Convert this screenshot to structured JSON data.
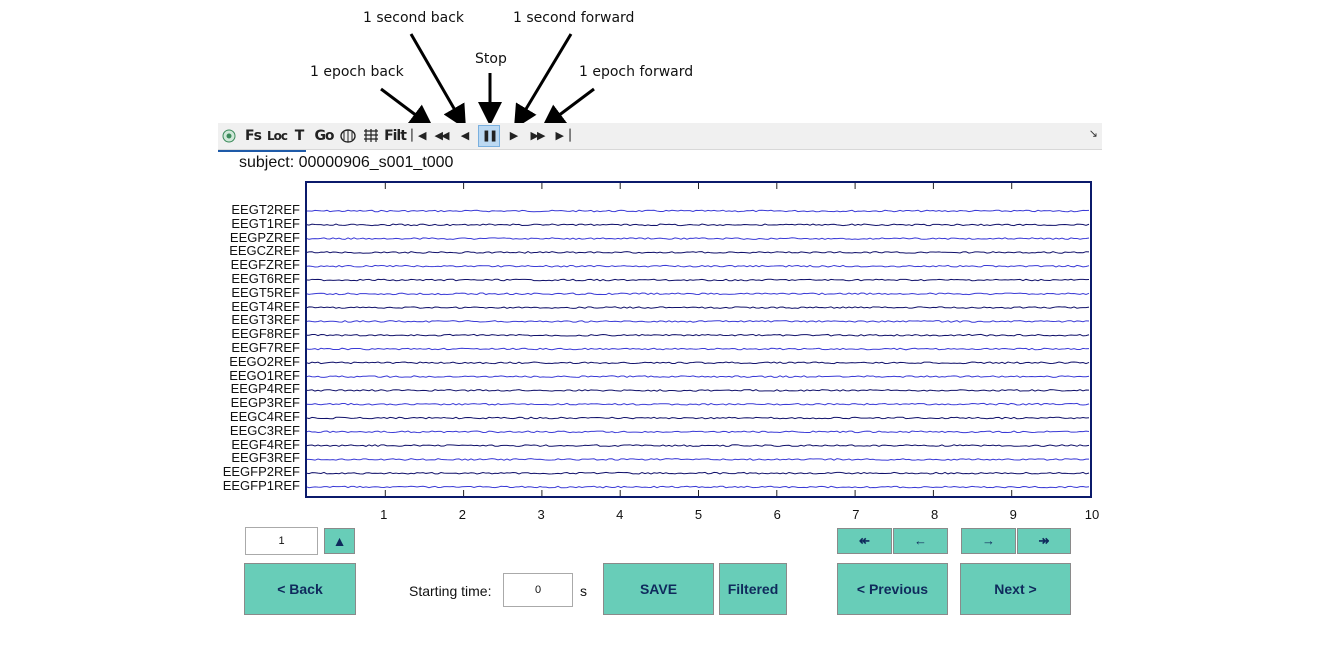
{
  "annotations": {
    "one_second_back": "1 second back",
    "one_second_forward": "1 second forward",
    "stop": "Stop",
    "one_epoch_back": "1 epoch back",
    "one_epoch_forward": "1 epoch forward"
  },
  "toolbar": {
    "items": [
      "Fs",
      "Loc",
      "T",
      "Go",
      "Filt"
    ],
    "icons": [
      "eeg-logo-icon",
      "brain-icon",
      "montage-icon",
      "skip-to-start-icon",
      "fast-back-icon",
      "step-back-icon",
      "pause-icon",
      "play-icon",
      "fast-forward-icon",
      "skip-to-end-icon",
      "undock-icon"
    ]
  },
  "subject": "subject: 00000906_s001_t000",
  "channels": [
    "EEGT2REF",
    "EEGT1REF",
    "EEGPZREF",
    "EEGCZREF",
    "EEGFZREF",
    "EEGT6REF",
    "EEGT5REF",
    "EEGT4REF",
    "EEGT3REF",
    "EEGF8REF",
    "EEGF7REF",
    "EEGO2REF",
    "EEGO1REF",
    "EEGP4REF",
    "EEGP3REF",
    "EEGC4REF",
    "EEGC3REF",
    "EEGF4REF",
    "EEGF3REF",
    "EEGFP2REF",
    "EEGFP1REF"
  ],
  "xticks": [
    "1",
    "2",
    "3",
    "4",
    "5",
    "6",
    "7",
    "8",
    "9",
    "10"
  ],
  "controls": {
    "page_value": "1",
    "up_arrow": "▲",
    "back_label": "<  Back",
    "starting_time_label": "Starting time:",
    "starting_time_value": "0",
    "seconds_unit": "s",
    "save_label": "SAVE",
    "filtered_label": "Filtered",
    "previous_label": "< Previous",
    "next_label": "Next  >",
    "nav_epoch_back": "↞",
    "nav_second_back": "←",
    "nav_second_forward": "→",
    "nav_epoch_forward": "↠"
  },
  "colors": {
    "accent_button": "#68cdb8",
    "trace_blue": "#3a3ad6",
    "trace_dark": "#10106a",
    "plot_border": "#0b1a6b"
  }
}
